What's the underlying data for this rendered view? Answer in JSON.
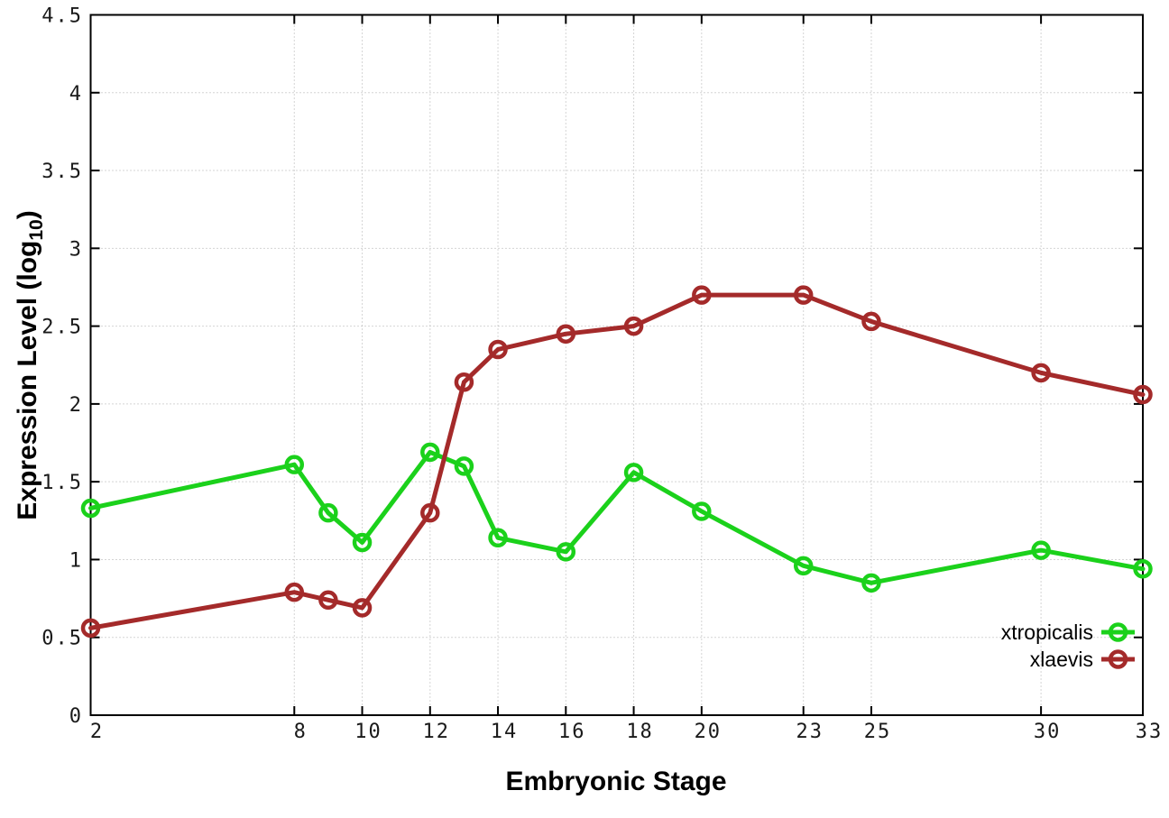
{
  "figure": {
    "background_color": "#ffffff",
    "axis_color": "#000000",
    "grid_color": "#aaaaaa",
    "tick_label_color": "#1a1a1a"
  },
  "chart_data": {
    "type": "line",
    "title": "",
    "xlabel": "Embryonic Stage",
    "ylabel": "Expression Level (log₁₀)",
    "ylabel_parts": {
      "prefix": "Expression Level (log",
      "sub": "10",
      "suffix": ")"
    },
    "x": [
      2,
      8,
      9,
      10,
      12,
      13,
      14,
      16,
      18,
      20,
      23,
      25,
      30,
      33
    ],
    "series": [
      {
        "name": "xtropicalis",
        "color": "#1bd11b",
        "marker": "open-circle",
        "values": [
          1.33,
          1.61,
          1.3,
          1.11,
          1.69,
          1.6,
          1.14,
          1.05,
          1.56,
          1.31,
          0.96,
          0.85,
          1.06,
          0.94
        ]
      },
      {
        "name": "xlaevis",
        "color": "#a42a2a",
        "marker": "open-circle",
        "values": [
          0.56,
          0.79,
          0.74,
          0.69,
          1.3,
          2.14,
          2.35,
          2.45,
          2.5,
          2.7,
          2.7,
          2.53,
          2.2,
          2.06
        ]
      }
    ],
    "xlim": [
      2,
      33
    ],
    "ylim": [
      0,
      4.5
    ],
    "xticks": [
      2,
      8,
      10,
      12,
      14,
      16,
      18,
      20,
      23,
      25,
      30,
      33
    ],
    "xtick_labels": [
      "2",
      "8",
      "10",
      "12",
      "14",
      "16",
      "18",
      "20",
      "23",
      "25",
      "30",
      "33"
    ],
    "yticks": [
      0,
      0.5,
      1,
      1.5,
      2,
      2.5,
      3,
      3.5,
      4,
      4.5
    ],
    "ytick_labels": [
      "0",
      "0.5",
      "1",
      "1.5",
      "2",
      "2.5",
      "3",
      "3.5",
      "4",
      "4.5"
    ],
    "grid": true,
    "grid_style": "dotted",
    "legend_position": "bottom-right"
  }
}
